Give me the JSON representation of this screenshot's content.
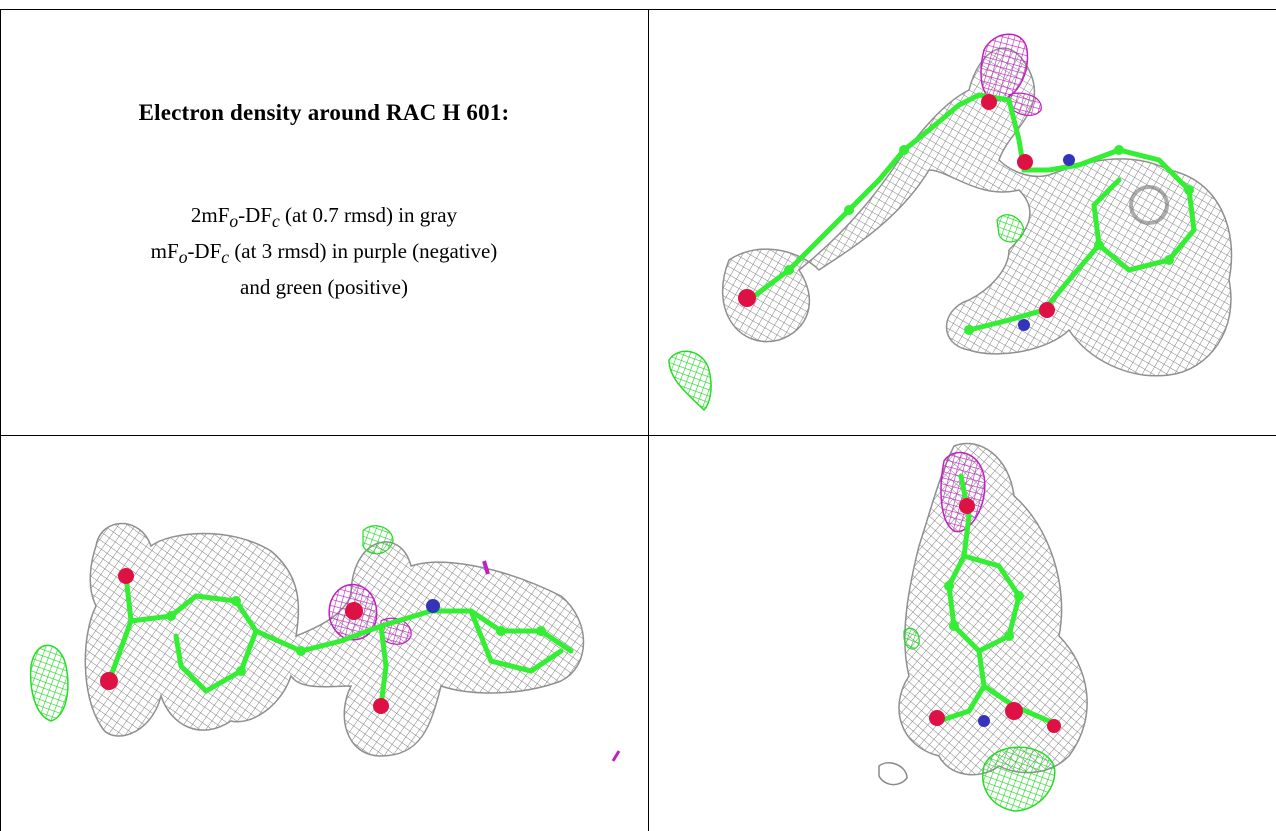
{
  "caption": {
    "title": "Electron density around RAC H 601:",
    "line1": {
      "prefix": "2mF",
      "sub1": "o",
      "mid": "-DF",
      "sub2": "c",
      "suffix": " (at 0.7 rmsd) in gray"
    },
    "line2": {
      "prefix": "mF",
      "sub1": "o",
      "mid": "-DF",
      "sub2": "c",
      "suffix": " (at 3 rmsd) in purple (negative)"
    },
    "line3": "and green (positive)"
  },
  "colors": {
    "mesh_gray": "#8a8a8a",
    "mesh_green": "#22dd22",
    "mesh_purple": "#cc22cc",
    "atom_carbon": "#33ee33",
    "atom_oxygen": "#dd1144",
    "atom_nitrogen": "#3333bb"
  },
  "panels": [
    {
      "name": "density-view-1"
    },
    {
      "name": "density-view-2"
    },
    {
      "name": "density-view-3"
    }
  ]
}
